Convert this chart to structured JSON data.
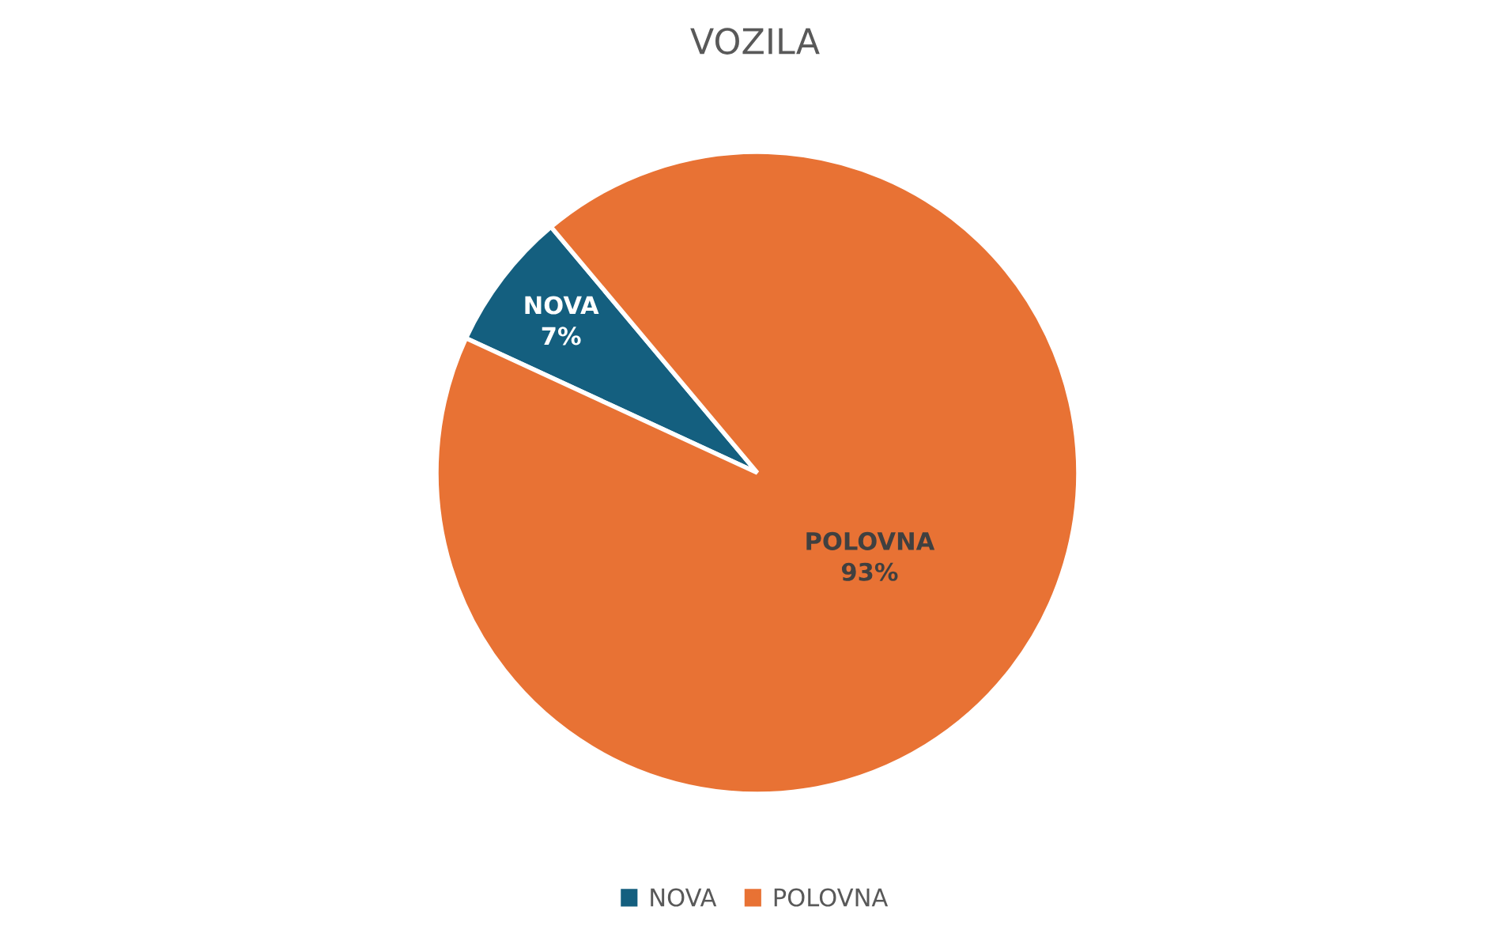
{
  "chart_data": {
    "type": "pie",
    "title": "VOZILA",
    "categories": [
      "NOVA",
      "POLOVNA"
    ],
    "values": [
      7,
      93
    ],
    "colors": [
      "#145f7f",
      "#e87234"
    ],
    "value_labels": [
      "7%",
      "93%"
    ],
    "legend": "bottom"
  }
}
